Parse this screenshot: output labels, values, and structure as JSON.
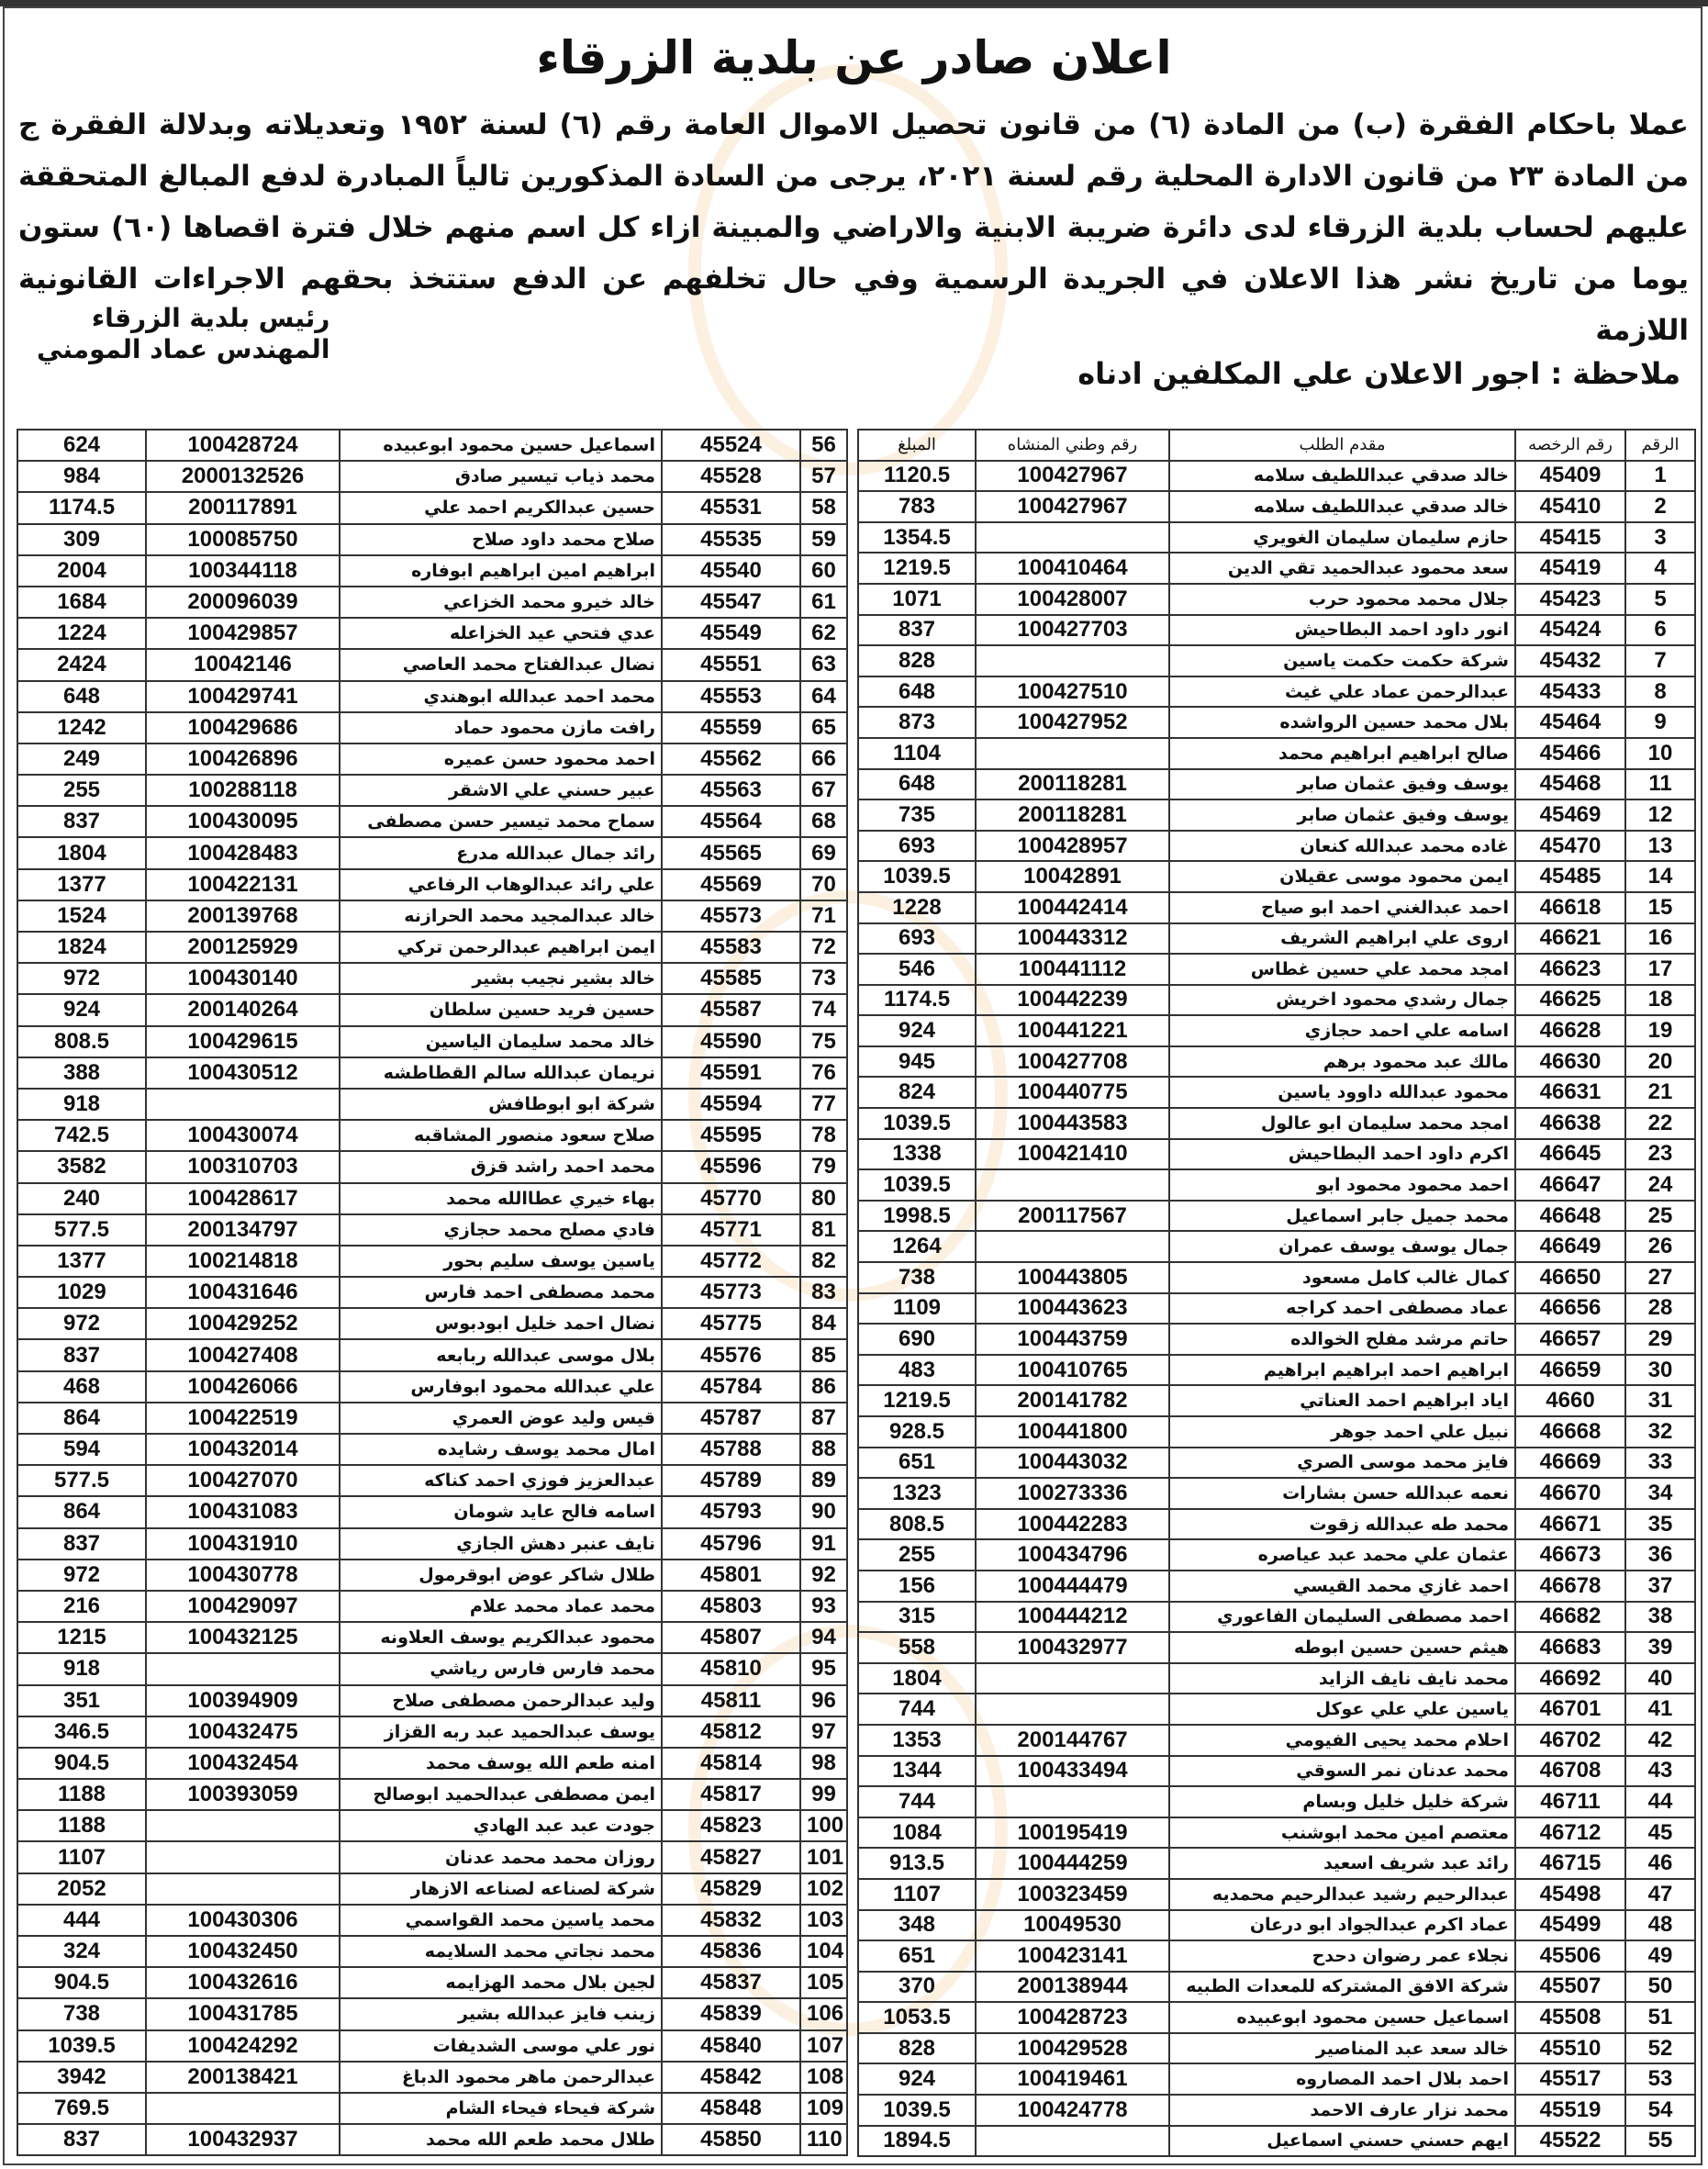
{
  "title": "اعلان صادر عن بلدية الزرقاء",
  "paragraph": "عملا باحكام الفقرة (ب) من المادة (٦) من قانون تحصيل الاموال العامة رقم (٦) لسنة ١٩٥٢ وتعديلاته وبدلالة الفقرة ج من المادة ٢٣ من قانون الادارة المحلية رقم لسنة ٢٠٢١، يرجى من السادة المذكورين تالياً المبادرة لدفع المبالغ المتحققة عليهم لحساب بلدية الزرقاء لدى دائرة ضريبة الابنية والاراضي والمبينة ازاء كل اسم منهم خلال فترة اقصاها (٦٠) ستون يوما من تاريخ نشر هذا الاعلان في الجريدة الرسمية وفي حال تخلفهم عن الدفع ستتخذ بحقهم الاجراءات القانونية اللازمة",
  "signature": {
    "line1": "رئيس بلدية الزرقاء",
    "line2": "المهندس عماد المومني"
  },
  "note": "ملاحظة : اجور الاعلان علي المكلفين ادناه",
  "headers": {
    "num": "الرقم",
    "license": "رقم الرخصه",
    "applicant": "مقدم الطلب",
    "national_id": "رقم وطني المنشاه",
    "amount": "المبلغ"
  },
  "right_table": [
    [
      "1",
      "45409",
      "خالد صدقي عبداللطيف سلامه",
      "100427967",
      "1120.5"
    ],
    [
      "2",
      "45410",
      "خالد صدقي عبداللطيف سلامه",
      "100427967",
      "783"
    ],
    [
      "3",
      "45415",
      "حازم سليمان سليمان الغويري",
      "",
      "1354.5"
    ],
    [
      "4",
      "45419",
      "سعد محمود عبدالحميد تقي الدين",
      "100410464",
      "1219.5"
    ],
    [
      "5",
      "45423",
      "جلال محمد محمود حرب",
      "100428007",
      "1071"
    ],
    [
      "6",
      "45424",
      "انور داود احمد البطاحيش",
      "100427703",
      "837"
    ],
    [
      "7",
      "45432",
      "شركة حكمت حكمت ياسين",
      "",
      "828"
    ],
    [
      "8",
      "45433",
      "عبدالرحمن عماد علي غيث",
      "100427510",
      "648"
    ],
    [
      "9",
      "45464",
      "بلال محمد حسين الرواشده",
      "100427952",
      "873"
    ],
    [
      "10",
      "45466",
      "صالح ابراهيم ابراهيم محمد",
      "",
      "1104"
    ],
    [
      "11",
      "45468",
      "يوسف وفيق عثمان صابر",
      "200118281",
      "648"
    ],
    [
      "12",
      "45469",
      "يوسف وفيق عثمان صابر",
      "200118281",
      "735"
    ],
    [
      "13",
      "45470",
      "غاده محمد عبدالله كنعان",
      "100428957",
      "693"
    ],
    [
      "14",
      "45485",
      "ايمن محمود موسى عقيلان",
      "10042891",
      "1039.5"
    ],
    [
      "15",
      "46618",
      "احمد عبدالغني احمد ابو صياح",
      "100442414",
      "1228"
    ],
    [
      "16",
      "46621",
      "اروى علي ابراهيم الشريف",
      "100443312",
      "693"
    ],
    [
      "17",
      "46623",
      "امجد محمد علي حسين غطاس",
      "100441112",
      "546"
    ],
    [
      "18",
      "46625",
      "جمال رشدي محمود اخريش",
      "100442239",
      "1174.5"
    ],
    [
      "19",
      "46628",
      "اسامه علي احمد حجازي",
      "100441221",
      "924"
    ],
    [
      "20",
      "46630",
      "مالك عبد محمود برهم",
      "100427708",
      "945"
    ],
    [
      "21",
      "46631",
      "محمود عبدالله داوود ياسين",
      "100440775",
      "824"
    ],
    [
      "22",
      "46638",
      "امجد محمد سليمان ابو عالول",
      "100443583",
      "1039.5"
    ],
    [
      "23",
      "46645",
      "اكرم داود احمد البطاحيش",
      "100421410",
      "1338"
    ],
    [
      "24",
      "46647",
      "احمد محمود محمود ابو",
      "",
      "1039.5"
    ],
    [
      "25",
      "46648",
      "محمد جميل جابر اسماعيل",
      "200117567",
      "1998.5"
    ],
    [
      "26",
      "46649",
      "جمال يوسف يوسف عمران",
      "",
      "1264"
    ],
    [
      "27",
      "46650",
      "كمال غالب كامل مسعود",
      "100443805",
      "738"
    ],
    [
      "28",
      "46656",
      "عماد مصطفى احمد كراجه",
      "100443623",
      "1109"
    ],
    [
      "29",
      "46657",
      "حاتم مرشد مفلح الخوالده",
      "100443759",
      "690"
    ],
    [
      "30",
      "46659",
      "ابراهيم احمد ابراهيم ابراهيم",
      "100410765",
      "483"
    ],
    [
      "31",
      "4660",
      "اياد ابراهيم احمد العناتي",
      "200141782",
      "1219.5"
    ],
    [
      "32",
      "46668",
      "نبيل علي احمد جوهر",
      "100441800",
      "928.5"
    ],
    [
      "33",
      "46669",
      "فايز محمد موسى الصري",
      "100443032",
      "651"
    ],
    [
      "34",
      "46670",
      "نعمه عبدالله حسن بشارات",
      "100273336",
      "1323"
    ],
    [
      "35",
      "46671",
      "محمد طه عبدالله زقوت",
      "100442283",
      "808.5"
    ],
    [
      "36",
      "46673",
      "عثمان علي محمد عبد عياصره",
      "100434796",
      "255"
    ],
    [
      "37",
      "46678",
      "احمد غازي محمد القيسي",
      "100444479",
      "156"
    ],
    [
      "38",
      "46682",
      "احمد مصطفى السليمان الفاعوري",
      "100444212",
      "315"
    ],
    [
      "39",
      "46683",
      "هيثم حسين حسين ابوطه",
      "100432977",
      "558"
    ],
    [
      "40",
      "46692",
      "محمد نايف نايف الزايد",
      "",
      "1804"
    ],
    [
      "41",
      "46701",
      "ياسين علي علي عوكل",
      "",
      "744"
    ],
    [
      "42",
      "46702",
      "احلام محمد يحيى الفيومي",
      "200144767",
      "1353"
    ],
    [
      "43",
      "46708",
      "محمد عدنان نمر السوقي",
      "100433494",
      "1344"
    ],
    [
      "44",
      "46711",
      "شركة خليل خليل وبسام",
      "",
      "744"
    ],
    [
      "45",
      "46712",
      "معتصم امين محمد ابوشنب",
      "100195419",
      "1084"
    ],
    [
      "46",
      "46715",
      "رائد عبد شريف اسعيد",
      "100444259",
      "913.5"
    ],
    [
      "47",
      "45498",
      "عبدالرحيم رشيد عبدالرحيم محمديه",
      "100323459",
      "1107"
    ],
    [
      "48",
      "45499",
      "عماد اكرم عبدالجواد ابو درعان",
      "10049530",
      "348"
    ],
    [
      "49",
      "45506",
      "نجلاء عمر رضوان دحدح",
      "100423141",
      "651"
    ],
    [
      "50",
      "45507",
      "شركة الافق المشتركه للمعدات الطبيه",
      "200138944",
      "370"
    ],
    [
      "51",
      "45508",
      "اسماعيل حسين محمود ابوعبيده",
      "100428723",
      "1053.5"
    ],
    [
      "52",
      "45510",
      "خالد سعد عبد المناصير",
      "100429528",
      "828"
    ],
    [
      "53",
      "45517",
      "احمد بلال احمد المصاروه",
      "100419461",
      "924"
    ],
    [
      "54",
      "45519",
      "محمد نزار عارف الاحمد",
      "100424778",
      "1039.5"
    ],
    [
      "55",
      "45522",
      "ايهم حسني حسني اسماعيل",
      "",
      "1894.5"
    ]
  ],
  "left_table": [
    [
      "56",
      "45524",
      "اسماعيل حسين محمود ابوعبيده",
      "100428724",
      "624"
    ],
    [
      "57",
      "45528",
      "محمد ذياب تيسير صادق",
      "2000132526",
      "984"
    ],
    [
      "58",
      "45531",
      "حسين عبدالكريم احمد علي",
      "200117891",
      "1174.5"
    ],
    [
      "59",
      "45535",
      "صلاح محمد داود صلاح",
      "100085750",
      "309"
    ],
    [
      "60",
      "45540",
      "ابراهيم امين ابراهيم ابوفاره",
      "100344118",
      "2004"
    ],
    [
      "61",
      "45547",
      "خالد خيرو محمد الخزاعي",
      "200096039",
      "1684"
    ],
    [
      "62",
      "45549",
      "عدي فتحي عيد الخزاعله",
      "100429857",
      "1224"
    ],
    [
      "63",
      "45551",
      "نضال عبدالفتاح محمد العاصي",
      "10042146",
      "2424"
    ],
    [
      "64",
      "45553",
      "محمد احمد عبدالله ابوهندي",
      "100429741",
      "648"
    ],
    [
      "65",
      "45559",
      "رافت مازن محمود حماد",
      "100429686",
      "1242"
    ],
    [
      "66",
      "45562",
      "احمد محمود حسن عميره",
      "100426896",
      "249"
    ],
    [
      "67",
      "45563",
      "عبير حسني علي الاشقر",
      "100288118",
      "255"
    ],
    [
      "68",
      "45564",
      "سماح محمد تيسير حسن مصطفى",
      "100430095",
      "837"
    ],
    [
      "69",
      "45565",
      "رائد جمال عبدالله مدرع",
      "100428483",
      "1804"
    ],
    [
      "70",
      "45569",
      "علي رائد عبدالوهاب الرفاعي",
      "100422131",
      "1377"
    ],
    [
      "71",
      "45573",
      "خالد عبدالمجيد محمد الحرازنه",
      "200139768",
      "1524"
    ],
    [
      "72",
      "45583",
      "ايمن ابراهيم عبدالرحمن تركي",
      "200125929",
      "1824"
    ],
    [
      "73",
      "45585",
      "خالد بشير نجيب بشير",
      "100430140",
      "972"
    ],
    [
      "74",
      "45587",
      "حسين فريد حسين سلطان",
      "200140264",
      "924"
    ],
    [
      "75",
      "45590",
      "خالد محمد سليمان الياسين",
      "100429615",
      "808.5"
    ],
    [
      "76",
      "45591",
      "نريمان عبدالله سالم القطاطشه",
      "100430512",
      "388"
    ],
    [
      "77",
      "45594",
      "شركة ابو ابوطافش",
      "",
      "918"
    ],
    [
      "78",
      "45595",
      "صلاح سعود منصور المشاقبه",
      "100430074",
      "742.5"
    ],
    [
      "79",
      "45596",
      "محمد احمد راشد قزق",
      "100310703",
      "3582"
    ],
    [
      "80",
      "45770",
      "بهاء خيري عطاالله محمد",
      "100428617",
      "240"
    ],
    [
      "81",
      "45771",
      "فادي مصلح محمد حجازي",
      "200134797",
      "577.5"
    ],
    [
      "82",
      "45772",
      "ياسين يوسف سليم بحور",
      "100214818",
      "1377"
    ],
    [
      "83",
      "45773",
      "محمد مصطفى احمد فارس",
      "100431646",
      "1029"
    ],
    [
      "84",
      "45775",
      "نضال احمد خليل ابودبوس",
      "100429252",
      "972"
    ],
    [
      "85",
      "45576",
      "بلال موسى عبدالله ربابعه",
      "100427408",
      "837"
    ],
    [
      "86",
      "45784",
      "علي عبدالله محمود ابوفارس",
      "100426066",
      "468"
    ],
    [
      "87",
      "45787",
      "قيس وليد عوض العمري",
      "100422519",
      "864"
    ],
    [
      "88",
      "45788",
      "امال محمد يوسف رشايده",
      "100432014",
      "594"
    ],
    [
      "89",
      "45789",
      "عبدالعزيز فوزي احمد كناكه",
      "100427070",
      "577.5"
    ],
    [
      "90",
      "45793",
      "اسامه فالح عايد شومان",
      "100431083",
      "864"
    ],
    [
      "91",
      "45796",
      "نايف عنبر دهش الجازي",
      "100431910",
      "837"
    ],
    [
      "92",
      "45801",
      "طلال شاكر عوض ابوقرمول",
      "100430778",
      "972"
    ],
    [
      "93",
      "45803",
      "محمد عماد محمد علام",
      "100429097",
      "216"
    ],
    [
      "94",
      "45807",
      "محمود عبدالكريم يوسف العلاونه",
      "100432125",
      "1215"
    ],
    [
      "95",
      "45810",
      "محمد فارس فارس رياشي",
      "",
      "918"
    ],
    [
      "96",
      "45811",
      "وليد عبدالرحمن مصطفى صلاح",
      "100394909",
      "351"
    ],
    [
      "97",
      "45812",
      "يوسف عبدالحميد عبد ربه القزاز",
      "100432475",
      "346.5"
    ],
    [
      "98",
      "45814",
      "امنه طعم الله يوسف محمد",
      "100432454",
      "904.5"
    ],
    [
      "99",
      "45817",
      "ايمن مصطفى عبدالحميد ابوصالح",
      "100393059",
      "1188"
    ],
    [
      "100",
      "45823",
      "جودت عبد عبد الهادي",
      "",
      "1188"
    ],
    [
      "101",
      "45827",
      "روزان محمد محمد عدنان",
      "",
      "1107"
    ],
    [
      "102",
      "45829",
      "شركة لصناعه لصناعه الازهار",
      "",
      "2052"
    ],
    [
      "103",
      "45832",
      "محمد ياسين محمد القواسمي",
      "100430306",
      "444"
    ],
    [
      "104",
      "45836",
      "محمد نجاتي محمد السلايمه",
      "100432450",
      "324"
    ],
    [
      "105",
      "45837",
      "لجين بلال محمد الهزايمه",
      "100432616",
      "904.5"
    ],
    [
      "106",
      "45839",
      "زينب فايز عبدالله بشير",
      "100431785",
      "738"
    ],
    [
      "107",
      "45840",
      "نور علي موسى الشديفات",
      "100424292",
      "1039.5"
    ],
    [
      "108",
      "45842",
      "عبدالرحمن ماهر محمود الدباغ",
      "200138421",
      "3942"
    ],
    [
      "109",
      "45848",
      "شركة فيحاء فيحاء الشام",
      "",
      "769.5"
    ],
    [
      "110",
      "45850",
      "طلال محمد طعم الله محمد",
      "100432937",
      "837"
    ]
  ]
}
